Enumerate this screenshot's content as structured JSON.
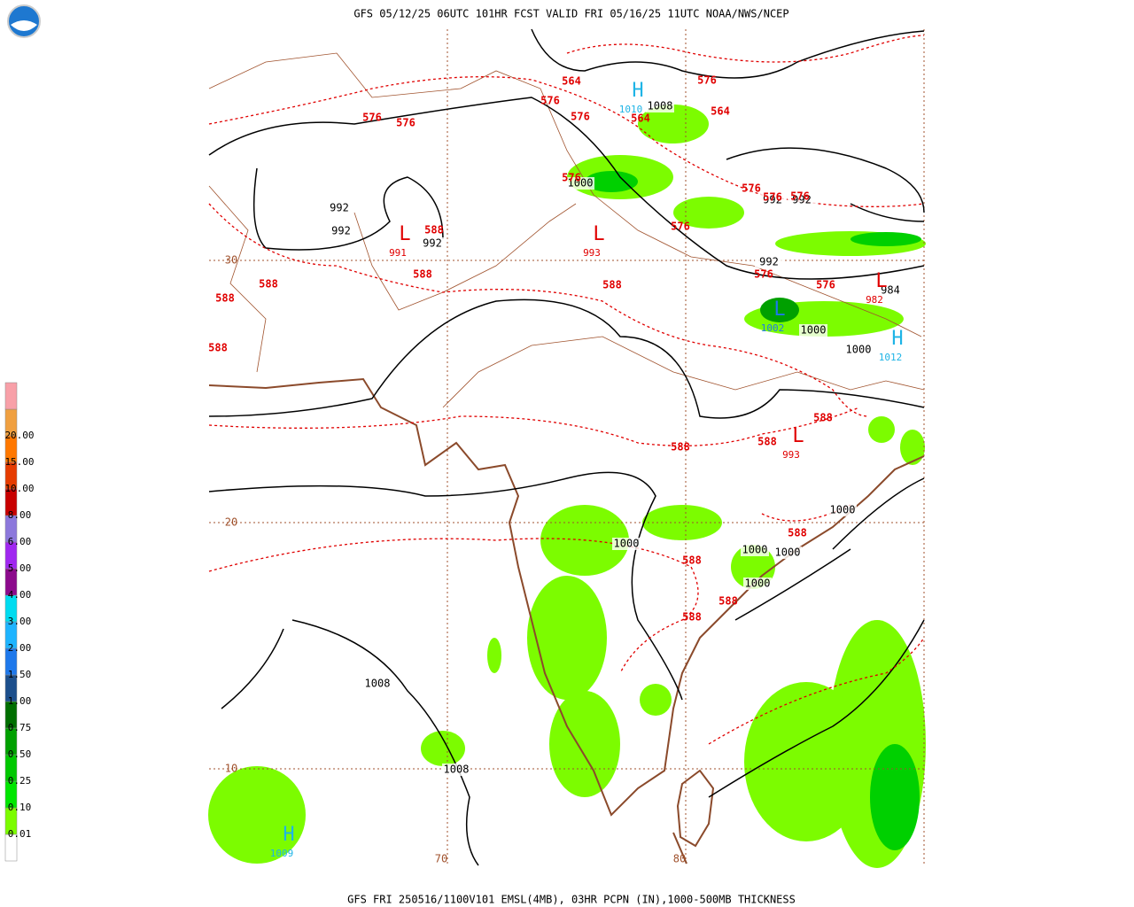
{
  "header": {
    "title": "GFS 05/12/25 06UTC 101HR FCST VALID FRI 05/16/25 11UTC NOAA/NWS/NCEP"
  },
  "footer": {
    "title": "GFS FRI 250516/1100V101 EMSL(4MB), 03HR PCPN (IN),1000-500MB THICKNESS"
  },
  "legend": {
    "labels": [
      "0.01",
      "0.10",
      "0.25",
      "0.50",
      "0.75",
      "1.00",
      "1.50",
      "2.00",
      "3.00",
      "4.00",
      "5.00",
      "6.00",
      "8.00",
      "10.00",
      "15.00",
      "20.00"
    ],
    "colors": [
      "#ffffff",
      "#7cfc00",
      "#00e600",
      "#00c800",
      "#00a000",
      "#006e00",
      "#1c4f8c",
      "#1e78eb",
      "#1eb4ff",
      "#00dcf0",
      "#8c0a8c",
      "#a028f0",
      "#8c78dc",
      "#c80000",
      "#e63c00",
      "#ff7800",
      "#f0a040",
      "#f8a0a8"
    ]
  },
  "grid_labels": {
    "latitudes": [
      30,
      20,
      10
    ],
    "longitudes": [
      70,
      80
    ]
  },
  "isobar_labels": [
    992,
    992,
    992,
    992,
    992,
    992,
    1000,
    1000,
    1000,
    1000,
    1000,
    1000,
    1000,
    1000,
    984,
    1008,
    1008,
    1008
  ],
  "thickness_labels": [
    564,
    564,
    564,
    576,
    576,
    576,
    576,
    576,
    576,
    576,
    576,
    576,
    576,
    576,
    576,
    588,
    588,
    588,
    588,
    588,
    588,
    588,
    588,
    588,
    588,
    588,
    588,
    588
  ],
  "centers": [
    {
      "symbol": "L",
      "value": 991
    },
    {
      "symbol": "L",
      "value": 993
    },
    {
      "symbol": "L",
      "value": 993
    },
    {
      "symbol": "L",
      "value": 982
    },
    {
      "symbol": "L",
      "value": 1002
    },
    {
      "symbol": "H",
      "value": 1010
    },
    {
      "symbol": "H",
      "value": 1012
    },
    {
      "symbol": "H",
      "value": 1009
    }
  ]
}
